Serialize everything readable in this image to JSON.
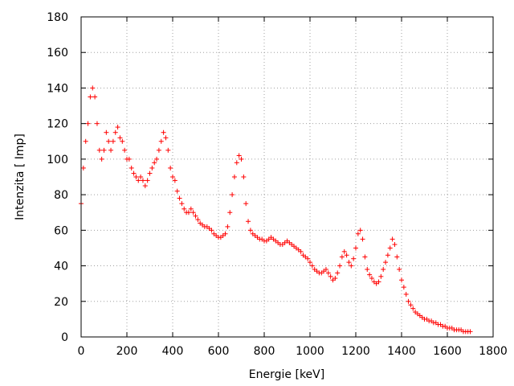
{
  "chart_data": {
    "type": "scatter",
    "title": "",
    "xlabel": "Energie [keV]",
    "ylabel": "Intenzita [ Imp]",
    "xlim": [
      0,
      1800
    ],
    "ylim": [
      0,
      180
    ],
    "xticks": [
      "0",
      "200",
      "400",
      "600",
      "800",
      "1000",
      "1200",
      "1400",
      "1600",
      "1800"
    ],
    "yticks": [
      "0",
      "20",
      "40",
      "60",
      "80",
      "100",
      "120",
      "140",
      "160",
      "180"
    ],
    "grid": true,
    "marker": "+",
    "color": "#ff0000",
    "series": [
      {
        "x": [
          0,
          10,
          20,
          30,
          40,
          50,
          60,
          70,
          80,
          90,
          100,
          110,
          120,
          130,
          140,
          150,
          160,
          170,
          180,
          190,
          200,
          210,
          220,
          230,
          240,
          250,
          260,
          270,
          280,
          290,
          300,
          310,
          320,
          330,
          340,
          350,
          360,
          370,
          380,
          390,
          400,
          410,
          420,
          430,
          440,
          450,
          460,
          470,
          480,
          490,
          500,
          510,
          520,
          530,
          540,
          550,
          560,
          570,
          580,
          590,
          600,
          610,
          620,
          630,
          640,
          650,
          660,
          670,
          680,
          690,
          700,
          710,
          720,
          730,
          740,
          750,
          760,
          770,
          780,
          790,
          800,
          810,
          820,
          830,
          840,
          850,
          860,
          870,
          880,
          890,
          900,
          910,
          920,
          930,
          940,
          950,
          960,
          970,
          980,
          990,
          1000,
          1010,
          1020,
          1030,
          1040,
          1050,
          1060,
          1070,
          1080,
          1090,
          1100,
          1110,
          1120,
          1130,
          1140,
          1150,
          1160,
          1170,
          1180,
          1190,
          1200,
          1210,
          1220,
          1230,
          1240,
          1250,
          1260,
          1270,
          1280,
          1290,
          1300,
          1310,
          1320,
          1330,
          1340,
          1350,
          1360,
          1370,
          1380,
          1390,
          1400,
          1410,
          1420,
          1430,
          1440,
          1450,
          1460,
          1470,
          1480,
          1490,
          1500,
          1510,
          1520,
          1530,
          1540,
          1550,
          1560,
          1570,
          1580,
          1590,
          1600,
          1610,
          1620,
          1630,
          1640,
          1650,
          1660,
          1670,
          1680,
          1690,
          1700
        ],
        "y": [
          75,
          95,
          110,
          120,
          135,
          140,
          135,
          120,
          105,
          100,
          105,
          115,
          110,
          105,
          110,
          115,
          118,
          112,
          110,
          105,
          100,
          100,
          95,
          92,
          90,
          88,
          90,
          88,
          85,
          88,
          92,
          95,
          98,
          100,
          105,
          110,
          115,
          112,
          105,
          95,
          90,
          88,
          82,
          78,
          75,
          72,
          70,
          70,
          72,
          70,
          68,
          66,
          64,
          63,
          62,
          62,
          61,
          60,
          58,
          57,
          56,
          56,
          57,
          58,
          62,
          70,
          80,
          90,
          98,
          102,
          100,
          90,
          75,
          65,
          60,
          58,
          57,
          56,
          55,
          55,
          54,
          54,
          55,
          56,
          55,
          54,
          53,
          52,
          52,
          53,
          54,
          53,
          52,
          51,
          50,
          49,
          48,
          46,
          45,
          44,
          42,
          40,
          38,
          37,
          36,
          36,
          37,
          38,
          36,
          34,
          32,
          33,
          36,
          40,
          45,
          48,
          46,
          42,
          40,
          44,
          50,
          58,
          60,
          55,
          45,
          38,
          35,
          33,
          31,
          30,
          31,
          34,
          38,
          42,
          46,
          50,
          55,
          52,
          45,
          38,
          32,
          28,
          24,
          20,
          18,
          16,
          14,
          13,
          12,
          11,
          10,
          10,
          9,
          9,
          8,
          8,
          7,
          7,
          6,
          6,
          5,
          5,
          5,
          4,
          4,
          4,
          4,
          3,
          3,
          3,
          3
        ]
      }
    ]
  }
}
